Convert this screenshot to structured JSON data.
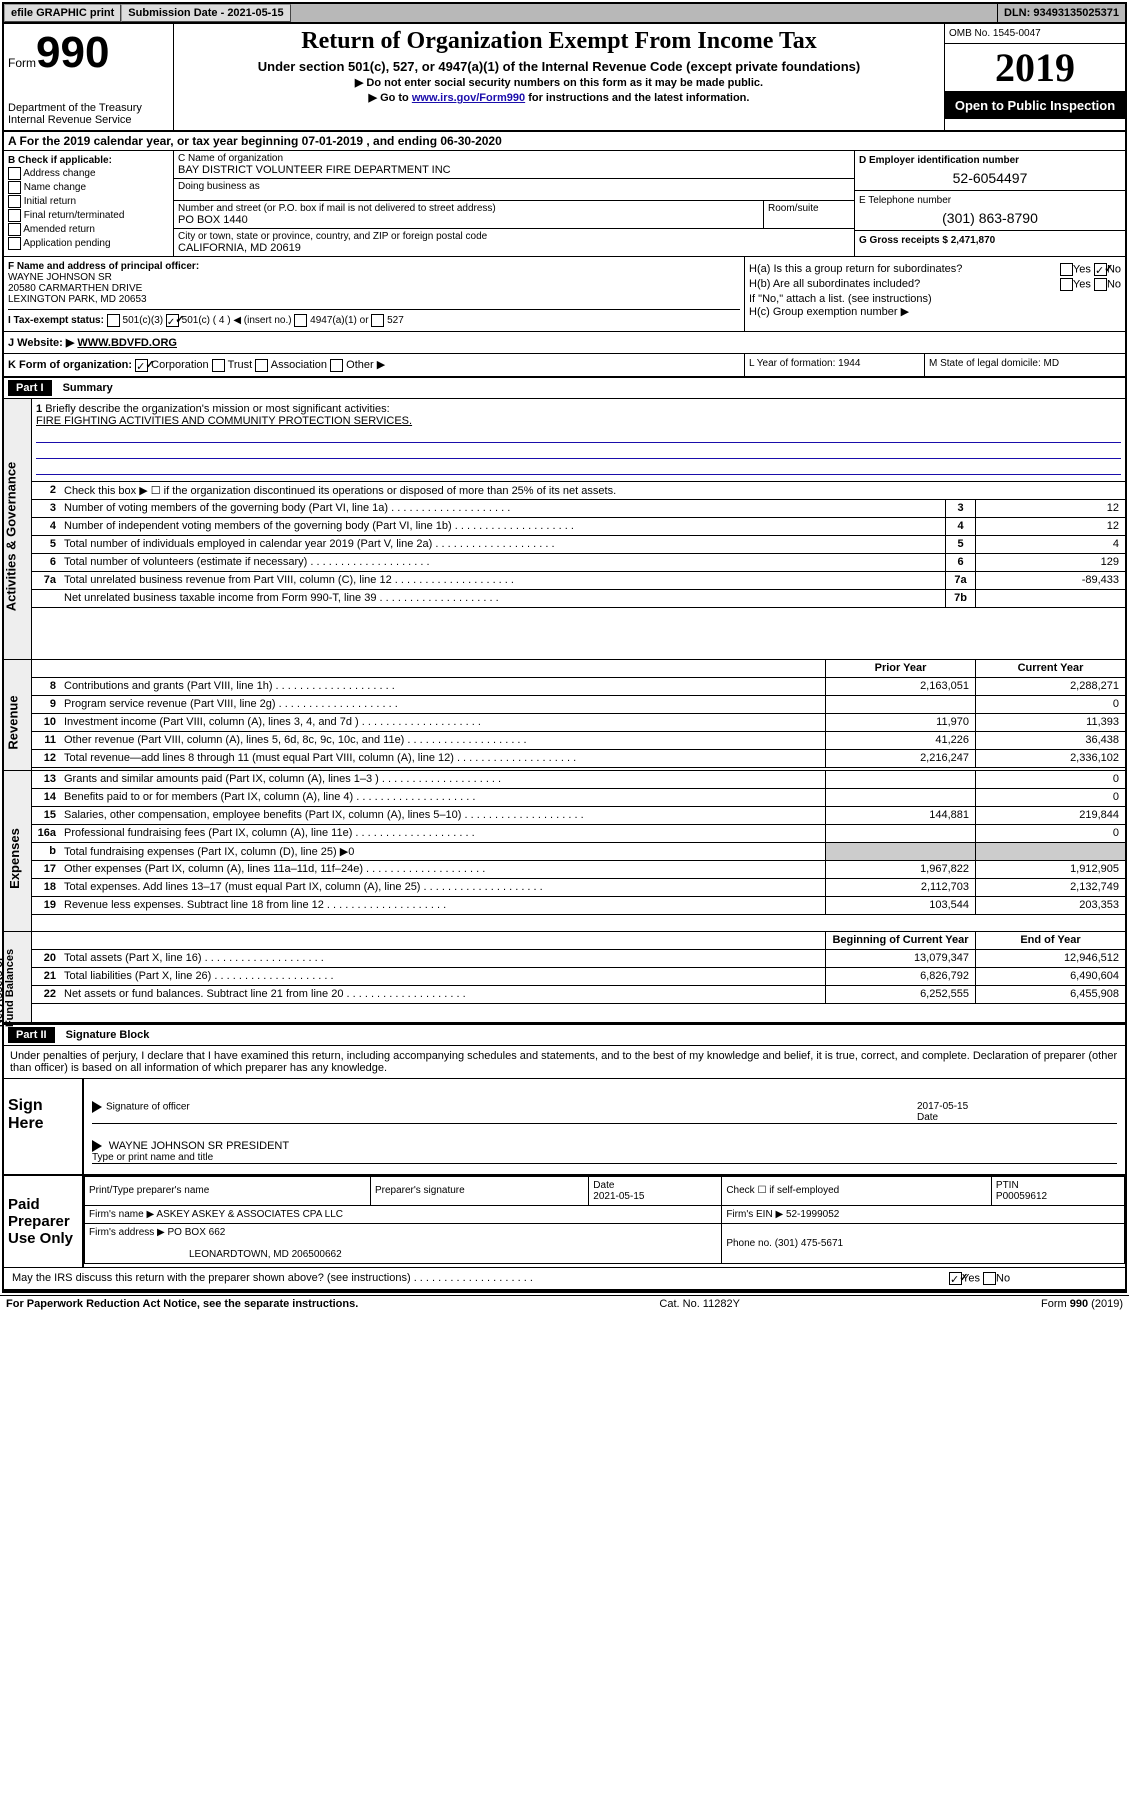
{
  "topbar": {
    "efile": "efile GRAPHIC print",
    "subdate_label": "Submission Date - 2021-05-15",
    "dln": "DLN: 93493135025371"
  },
  "header": {
    "form_label": "Form",
    "form_num": "990",
    "dept": "Department of the Treasury\nInternal Revenue Service",
    "title": "Return of Organization Exempt From Income Tax",
    "subtitle": "Under section 501(c), 527, or 4947(a)(1) of the Internal Revenue Code (except private foundations)",
    "instr1": "▶ Do not enter social security numbers on this form as it may be made public.",
    "instr2_pre": "▶ Go to ",
    "instr2_link": "www.irs.gov/Form990",
    "instr2_post": " for instructions and the latest information.",
    "omb": "OMB No. 1545-0047",
    "year": "2019",
    "public": "Open to Public Inspection"
  },
  "sectionA": "A For the 2019 calendar year, or tax year beginning 07-01-2019   , and ending 06-30-2020",
  "B": {
    "label": "B Check if applicable:",
    "items": [
      "Address change",
      "Name change",
      "Initial return",
      "Final return/terminated",
      "Amended return",
      "Application pending"
    ]
  },
  "C": {
    "name_label": "C Name of organization",
    "name": "BAY DISTRICT VOLUNTEER FIRE DEPARTMENT INC",
    "dba_label": "Doing business as",
    "street_label": "Number and street (or P.O. box if mail is not delivered to street address)",
    "street": "PO BOX 1440",
    "room_label": "Room/suite",
    "city_label": "City or town, state or province, country, and ZIP or foreign postal code",
    "city": "CALIFORNIA, MD  20619"
  },
  "D": {
    "label": "D Employer identification number",
    "val": "52-6054497"
  },
  "E": {
    "label": "E Telephone number",
    "val": "(301) 863-8790"
  },
  "G": {
    "label": "G Gross receipts $ 2,471,870"
  },
  "F": {
    "label": "F  Name and address of principal officer:",
    "name": "WAYNE JOHNSON SR",
    "addr1": "20580 CARMARTHEN DRIVE",
    "addr2": "LEXINGTON PARK, MD  20653"
  },
  "H": {
    "a": "H(a)  Is this a group return for subordinates?",
    "b": "H(b)  Are all subordinates included?",
    "b2": "If \"No,\" attach a list. (see instructions)",
    "c": "H(c)  Group exemption number ▶",
    "yes": "Yes",
    "no": "No"
  },
  "I": {
    "label": "I  Tax-exempt status:",
    "opts": [
      "501(c)(3)",
      "501(c) ( 4 ) ◀ (insert no.)",
      "4947(a)(1) or",
      "527"
    ]
  },
  "J": {
    "label": "J  Website: ▶",
    "val": "WWW.BDVFD.ORG"
  },
  "K": {
    "label": "K Form of organization:",
    "opts": [
      "Corporation",
      "Trust",
      "Association",
      "Other ▶"
    ]
  },
  "L": {
    "label": "L Year of formation: 1944"
  },
  "M": {
    "label": "M State of legal domicile: MD"
  },
  "parts": {
    "p1": "Part I",
    "p1t": "Summary",
    "p2": "Part II",
    "p2t": "Signature Block"
  },
  "sidetabs": {
    "ag": "Activities & Governance",
    "rev": "Revenue",
    "exp": "Expenses",
    "na": "Net Assets or\nFund Balances"
  },
  "summary": {
    "l1": "Briefly describe the organization's mission or most significant activities:",
    "l1v": "FIRE FIGHTING ACTIVITIES AND COMMUNITY PROTECTION SERVICES.",
    "l2": "Check this box ▶ ☐  if the organization discontinued its operations or disposed of more than 25% of its net assets.",
    "rows_ag": [
      {
        "n": "3",
        "d": "Number of voting members of the governing body (Part VI, line 1a)",
        "b": "3",
        "v": "12"
      },
      {
        "n": "4",
        "d": "Number of independent voting members of the governing body (Part VI, line 1b)",
        "b": "4",
        "v": "12"
      },
      {
        "n": "5",
        "d": "Total number of individuals employed in calendar year 2019 (Part V, line 2a)",
        "b": "5",
        "v": "4"
      },
      {
        "n": "6",
        "d": "Total number of volunteers (estimate if necessary)",
        "b": "6",
        "v": "129"
      },
      {
        "n": "7a",
        "d": "Total unrelated business revenue from Part VIII, column (C), line 12",
        "b": "7a",
        "v": "-89,433"
      },
      {
        "n": "",
        "d": "Net unrelated business taxable income from Form 990-T, line 39",
        "b": "7b",
        "v": ""
      }
    ],
    "colhdr": {
      "py": "Prior Year",
      "cy": "Current Year"
    },
    "rows_rev": [
      {
        "n": "8",
        "d": "Contributions and grants (Part VIII, line 1h)",
        "p": "2,163,051",
        "c": "2,288,271"
      },
      {
        "n": "9",
        "d": "Program service revenue (Part VIII, line 2g)",
        "p": "",
        "c": "0"
      },
      {
        "n": "10",
        "d": "Investment income (Part VIII, column (A), lines 3, 4, and 7d )",
        "p": "11,970",
        "c": "11,393"
      },
      {
        "n": "11",
        "d": "Other revenue (Part VIII, column (A), lines 5, 6d, 8c, 9c, 10c, and 11e)",
        "p": "41,226",
        "c": "36,438"
      },
      {
        "n": "12",
        "d": "Total revenue—add lines 8 through 11 (must equal Part VIII, column (A), line 12)",
        "p": "2,216,247",
        "c": "2,336,102"
      }
    ],
    "rows_exp": [
      {
        "n": "13",
        "d": "Grants and similar amounts paid (Part IX, column (A), lines 1–3 )",
        "p": "",
        "c": "0"
      },
      {
        "n": "14",
        "d": "Benefits paid to or for members (Part IX, column (A), line 4)",
        "p": "",
        "c": "0"
      },
      {
        "n": "15",
        "d": "Salaries, other compensation, employee benefits (Part IX, column (A), lines 5–10)",
        "p": "144,881",
        "c": "219,844"
      },
      {
        "n": "16a",
        "d": "Professional fundraising fees (Part IX, column (A), line 11e)",
        "p": "",
        "c": "0"
      },
      {
        "n": "b",
        "d": "Total fundraising expenses (Part IX, column (D), line 25) ▶0",
        "p": "—",
        "c": "—"
      },
      {
        "n": "17",
        "d": "Other expenses (Part IX, column (A), lines 11a–11d, 11f–24e)",
        "p": "1,967,822",
        "c": "1,912,905"
      },
      {
        "n": "18",
        "d": "Total expenses. Add lines 13–17 (must equal Part IX, column (A), line 25)",
        "p": "2,112,703",
        "c": "2,132,749"
      },
      {
        "n": "19",
        "d": "Revenue less expenses. Subtract line 18 from line 12",
        "p": "103,544",
        "c": "203,353"
      }
    ],
    "colhdr2": {
      "by": "Beginning of Current Year",
      "ey": "End of Year"
    },
    "rows_na": [
      {
        "n": "20",
        "d": "Total assets (Part X, line 16)",
        "p": "13,079,347",
        "c": "12,946,512"
      },
      {
        "n": "21",
        "d": "Total liabilities (Part X, line 26)",
        "p": "6,826,792",
        "c": "6,490,604"
      },
      {
        "n": "22",
        "d": "Net assets or fund balances. Subtract line 21 from line 20",
        "p": "6,252,555",
        "c": "6,455,908"
      }
    ]
  },
  "penalties": "Under penalties of perjury, I declare that I have examined this return, including accompanying schedules and statements, and to the best of my knowledge and belief, it is true, correct, and complete. Declaration of preparer (other than officer) is based on all information of which preparer has any knowledge.",
  "sign": {
    "label": "Sign Here",
    "sig_officer": "Signature of officer",
    "date": "Date",
    "datev": "2017-05-15",
    "name": "WAYNE JOHNSON SR  PRESIDENT",
    "name_label": "Type or print name and title"
  },
  "prep": {
    "label": "Paid Preparer Use Only",
    "h": [
      "Print/Type preparer's name",
      "Preparer's signature",
      "Date",
      "",
      "PTIN"
    ],
    "datev": "2021-05-15",
    "chk": "Check ☐ if self-employed",
    "ptin": "P00059612",
    "firm_label": "Firm's name    ▶",
    "firm": "ASKEY ASKEY & ASSOCIATES CPA LLC",
    "ein_label": "Firm's EIN ▶",
    "ein": "52-1999052",
    "addr_label": "Firm's address ▶",
    "addr1": "PO BOX 662",
    "addr2": "LEONARDTOWN, MD  206500662",
    "phone_label": "Phone no.",
    "phone": "(301) 475-5671"
  },
  "discuss": "May the IRS discuss this return with the preparer shown above? (see instructions)",
  "footer": {
    "left": "For Paperwork Reduction Act Notice, see the separate instructions.",
    "mid": "Cat. No. 11282Y",
    "right": "Form 990 (2019)"
  }
}
